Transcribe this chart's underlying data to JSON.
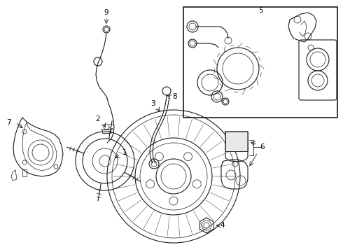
{
  "bg_color": "#ffffff",
  "line_color": "#1a1a1a",
  "label_color": "#000000",
  "figsize": [
    4.9,
    3.6
  ],
  "dpi": 100,
  "xlim": [
    0,
    490
  ],
  "ylim": [
    0,
    360
  ]
}
